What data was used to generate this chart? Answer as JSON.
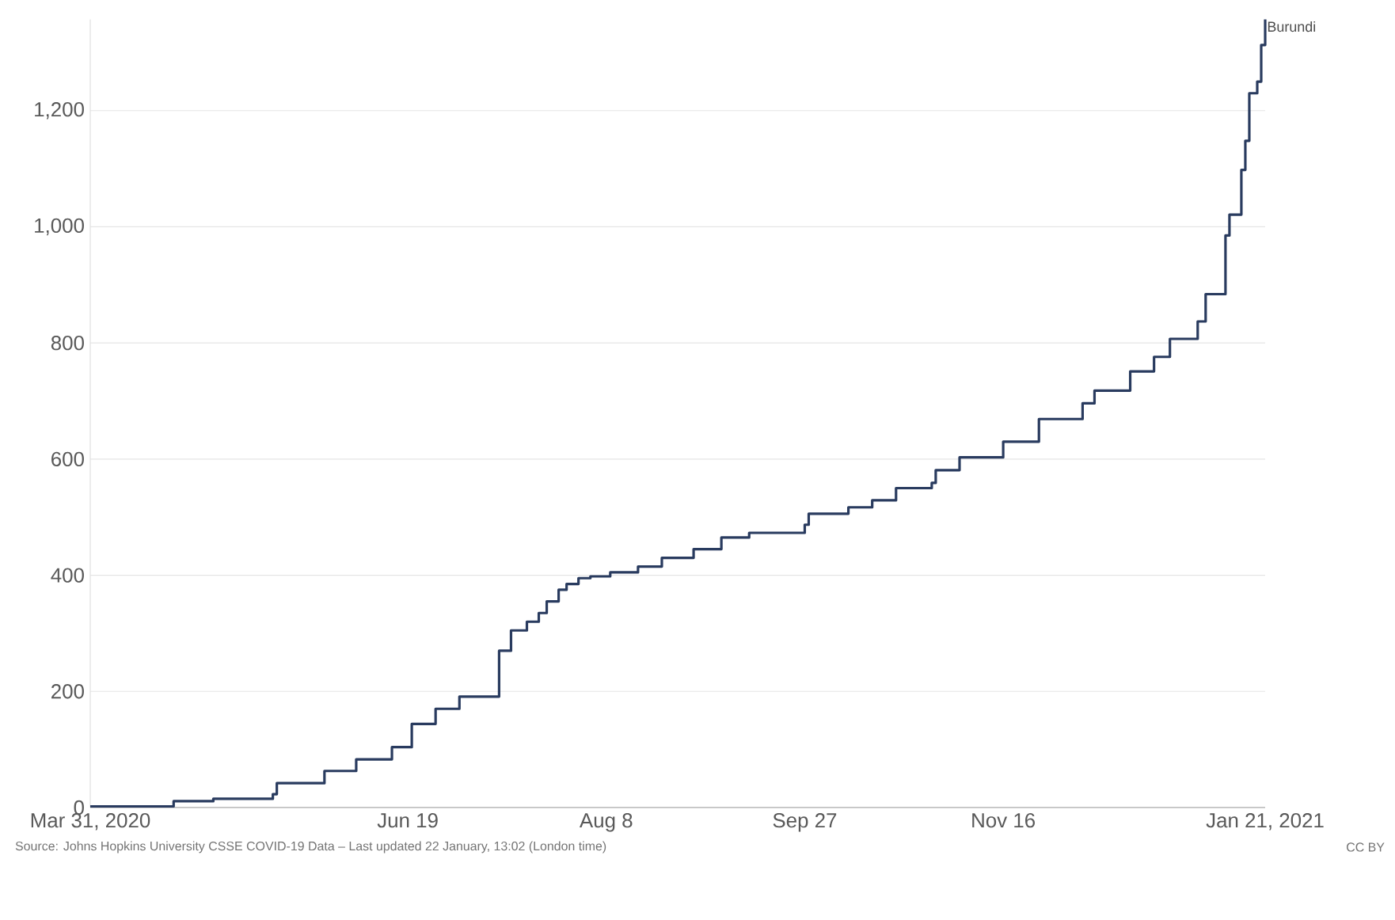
{
  "chart_data": {
    "type": "step",
    "x": [
      "2020-03-31",
      "2020-04-21",
      "2020-05-01",
      "2020-05-16",
      "2020-05-17",
      "2020-05-29",
      "2020-06-06",
      "2020-06-15",
      "2020-06-20",
      "2020-06-26",
      "2020-07-02",
      "2020-07-12",
      "2020-07-15",
      "2020-07-19",
      "2020-07-22",
      "2020-07-24",
      "2020-07-27",
      "2020-07-29",
      "2020-08-01",
      "2020-08-04",
      "2020-08-09",
      "2020-08-16",
      "2020-08-22",
      "2020-08-30",
      "2020-09-06",
      "2020-09-13",
      "2020-09-27",
      "2020-09-28",
      "2020-10-08",
      "2020-10-14",
      "2020-10-20",
      "2020-10-29",
      "2020-10-30",
      "2020-11-05",
      "2020-11-16",
      "2020-11-25",
      "2020-12-06",
      "2020-12-09",
      "2020-12-18",
      "2020-12-24",
      "2020-12-28",
      "2021-01-04",
      "2021-01-06",
      "2021-01-11",
      "2021-01-12",
      "2021-01-15",
      "2021-01-16",
      "2021-01-17",
      "2021-01-19",
      "2021-01-20",
      "2021-01-21"
    ],
    "series": [
      {
        "name": "Burundi",
        "color": "#293b5f",
        "values": [
          2,
          11,
          15,
          23,
          42,
          63,
          83,
          104,
          144,
          170,
          191,
          270,
          305,
          320,
          335,
          355,
          375,
          385,
          395,
          398,
          405,
          415,
          430,
          445,
          465,
          473,
          487,
          506,
          517,
          529,
          550,
          559,
          581,
          603,
          630,
          669,
          696,
          718,
          751,
          776,
          807,
          837,
          884,
          985,
          1021,
          1098,
          1148,
          1230,
          1250,
          1313,
          1357
        ]
      }
    ],
    "xlim": [
      "2020-03-31",
      "2021-01-21"
    ],
    "xticks": [
      {
        "value": "2020-03-31",
        "label": "Mar 31, 2020"
      },
      {
        "value": "2020-06-19",
        "label": "Jun 19"
      },
      {
        "value": "2020-08-08",
        "label": "Aug 8"
      },
      {
        "value": "2020-09-27",
        "label": "Sep 27"
      },
      {
        "value": "2020-11-16",
        "label": "Nov 16"
      },
      {
        "value": "2021-01-21",
        "label": "Jan 21, 2021"
      }
    ],
    "ylim": [
      0,
      1357
    ],
    "yticks": [
      0,
      200,
      400,
      600,
      800,
      {
        "value": 1000,
        "label": "1,000"
      },
      {
        "value": 1200,
        "label": "1,200"
      }
    ],
    "grid": "y",
    "annotations": [
      "Source: Johns Hopkins University CSSE COVID-19 Data – Last updated 22 January, 13:02 (London time)",
      "CC BY"
    ]
  }
}
